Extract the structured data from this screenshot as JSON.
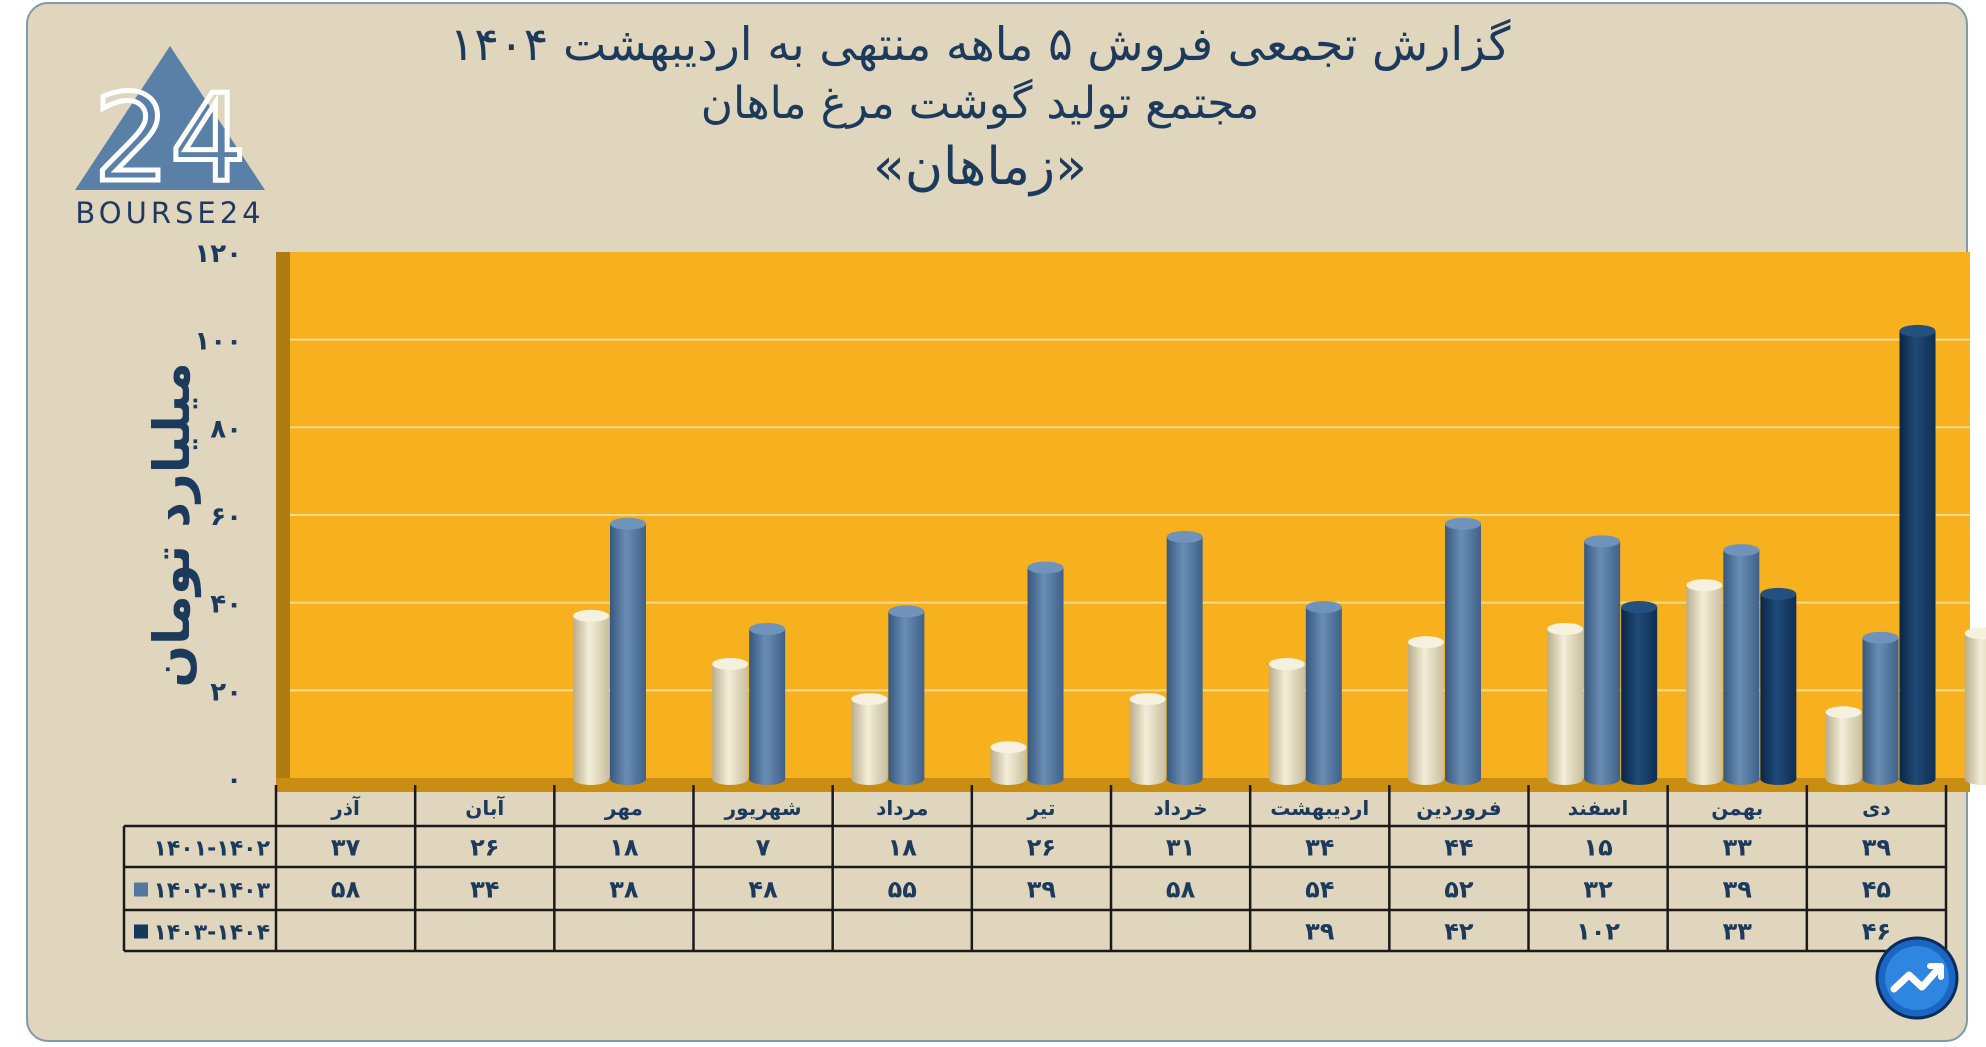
{
  "header": {
    "title_line1": "گزارش تجمعی فروش ۵ ماهه منتهی به اردیبهشت ۱۴۰۴",
    "title_line2": "مجتمع تولید گوشت مرغ ماهان",
    "title_line3": "«زماهان»"
  },
  "logo": {
    "text": "BOURSE24",
    "mark": "24"
  },
  "colors": {
    "background": "#e0d6bd",
    "plot": "#f7b11f",
    "series1": "#ece4c6",
    "series2": "#54779f",
    "series3": "#15385f",
    "text": "#1c3a5c"
  },
  "badge": {
    "icon": "trend-up-circle-icon"
  },
  "chart_data": {
    "type": "bar",
    "ylabel": "میلیارد تومان",
    "ylim": [
      0,
      120
    ],
    "yticks": [
      0,
      20,
      40,
      60,
      80,
      100,
      120
    ],
    "ytick_labels": [
      "۰",
      "۲۰",
      "۴۰",
      "۶۰",
      "۸۰",
      "۱۰۰",
      "۱۲۰"
    ],
    "grid": true,
    "legend": "table-left",
    "categories": [
      "دی",
      "بهمن",
      "اسفند",
      "فروردین",
      "اردیبهشت",
      "خرداد",
      "تیر",
      "مرداد",
      "شهریور",
      "مهر",
      "آبان",
      "آذر"
    ],
    "series": [
      {
        "name": "۱۴۰۱-۱۴۰۲",
        "values": [
          39,
          33,
          15,
          44,
          34,
          31,
          26,
          18,
          7,
          18,
          26,
          37
        ],
        "labels": [
          "۳۹",
          "۳۳",
          "۱۵",
          "۴۴",
          "۳۴",
          "۳۱",
          "۲۶",
          "۱۸",
          "۷",
          "۱۸",
          "۲۶",
          "۳۷"
        ]
      },
      {
        "name": "۱۴۰۲-۱۴۰۳",
        "values": [
          45,
          39,
          32,
          52,
          54,
          58,
          39,
          55,
          48,
          38,
          34,
          58
        ],
        "labels": [
          "۴۵",
          "۳۹",
          "۳۲",
          "۵۲",
          "۵۴",
          "۵۸",
          "۳۹",
          "۵۵",
          "۴۸",
          "۳۸",
          "۳۴",
          "۵۸"
        ]
      },
      {
        "name": "۱۴۰۳-۱۴۰۴",
        "values": [
          46,
          33,
          102,
          42,
          39,
          null,
          null,
          null,
          null,
          null,
          null,
          null
        ],
        "labels": [
          "۴۶",
          "۳۳",
          "۱۰۲",
          "۴۲",
          "۳۹",
          "",
          "",
          "",
          "",
          "",
          "",
          ""
        ]
      }
    ]
  }
}
